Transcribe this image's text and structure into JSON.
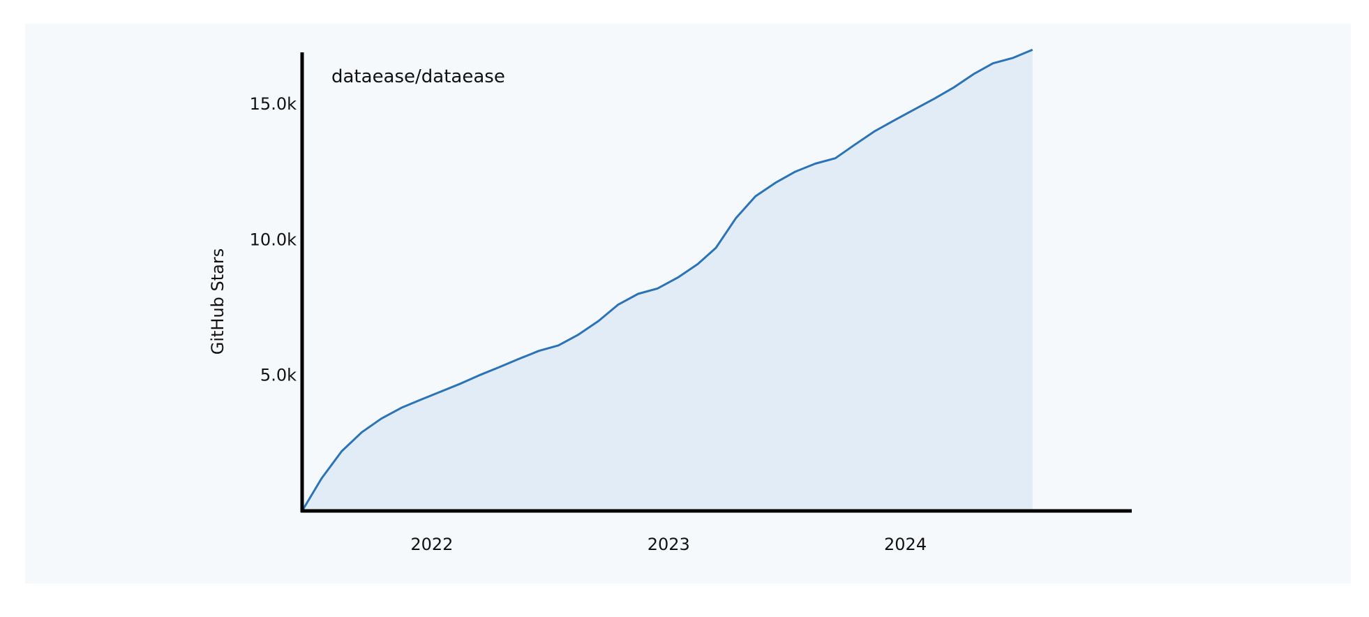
{
  "chart_data": {
    "type": "area",
    "title": "",
    "xlabel": "",
    "ylabel": "GitHub Stars",
    "series": [
      {
        "name": "dataease/dataease",
        "x": [
          "2021-06-15",
          "2021-07-15",
          "2021-08-15",
          "2021-09-15",
          "2021-10-15",
          "2021-11-15",
          "2021-12-15",
          "2022-01-15",
          "2022-02-15",
          "2022-03-15",
          "2022-04-15",
          "2022-05-15",
          "2022-06-15",
          "2022-07-15",
          "2022-08-15",
          "2022-09-15",
          "2022-10-15",
          "2022-11-15",
          "2022-12-15",
          "2023-01-15",
          "2023-02-15",
          "2023-03-15",
          "2023-04-15",
          "2023-05-15",
          "2023-06-15",
          "2023-07-15",
          "2023-08-15",
          "2023-09-15",
          "2023-10-15",
          "2023-11-15",
          "2023-12-15",
          "2024-01-15",
          "2024-02-15",
          "2024-03-15",
          "2024-04-15",
          "2024-05-15",
          "2024-06-15",
          "2024-07-15"
        ],
        "values": [
          0,
          1200,
          2200,
          2900,
          3400,
          3800,
          4100,
          4400,
          4700,
          5000,
          5300,
          5600,
          5900,
          6100,
          6500,
          7000,
          7600,
          8000,
          8200,
          8600,
          9100,
          9700,
          10800,
          11600,
          12100,
          12500,
          12800,
          13000,
          13500,
          14000,
          14400,
          14800,
          15200,
          15600,
          16100,
          16500,
          16700,
          17000
        ]
      }
    ],
    "yticks": [
      {
        "value": 5000,
        "label": "5.0k"
      },
      {
        "value": 10000,
        "label": "10.0k"
      },
      {
        "value": 15000,
        "label": "15.0k"
      }
    ],
    "xticks": [
      {
        "value": "2022-01-01",
        "label": "2022"
      },
      {
        "value": "2023-01-01",
        "label": "2023"
      },
      {
        "value": "2024-01-01",
        "label": "2024"
      }
    ],
    "xlim": [
      "2021-06-15",
      "2024-12-15"
    ],
    "ylim": [
      0,
      16800
    ],
    "grid": false,
    "legend": "top-left inside plot",
    "colors": {
      "line": "#2b73b7",
      "fill": "#e1ecf6",
      "panel_background": "#f5f9fc",
      "axis": "#000000"
    }
  }
}
